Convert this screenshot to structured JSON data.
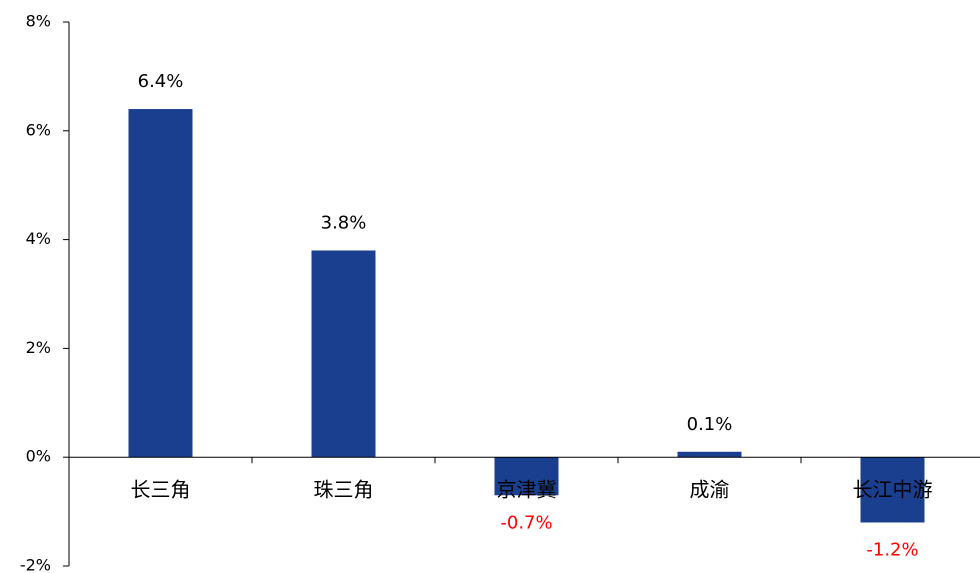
{
  "chart_data": {
    "type": "bar",
    "categories": [
      "长三角",
      "珠三角",
      "京津冀",
      "成渝",
      "长江中游"
    ],
    "values": [
      6.4,
      3.8,
      -0.7,
      0.1,
      -1.2
    ],
    "value_labels": [
      "6.4%",
      "3.8%",
      "-0.7%",
      "0.1%",
      "-1.2%"
    ],
    "color": "#1b3f8f",
    "negative_label_color": "#ff0000",
    "ylim": [
      -2,
      8
    ],
    "yticks": [
      {
        "value": -2,
        "label": "-2%"
      },
      {
        "value": 0,
        "label": "0%"
      },
      {
        "value": 2,
        "label": "2%"
      },
      {
        "value": 4,
        "label": "4%"
      },
      {
        "value": 6,
        "label": "6%"
      },
      {
        "value": 8,
        "label": "8%"
      }
    ],
    "grid": false
  }
}
